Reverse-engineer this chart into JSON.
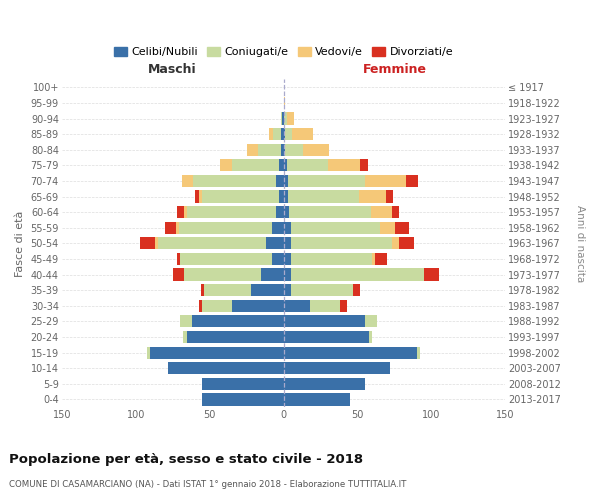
{
  "age_groups": [
    "100+",
    "95-99",
    "90-94",
    "85-89",
    "80-84",
    "75-79",
    "70-74",
    "65-69",
    "60-64",
    "55-59",
    "50-54",
    "45-49",
    "40-44",
    "35-39",
    "30-34",
    "25-29",
    "20-24",
    "15-19",
    "10-14",
    "5-9",
    "0-4"
  ],
  "birth_years": [
    "≤ 1917",
    "1918-1922",
    "1923-1927",
    "1928-1932",
    "1933-1937",
    "1938-1942",
    "1943-1947",
    "1948-1952",
    "1953-1957",
    "1958-1962",
    "1963-1967",
    "1968-1972",
    "1973-1977",
    "1978-1982",
    "1983-1987",
    "1988-1992",
    "1993-1997",
    "1998-2002",
    "2003-2007",
    "2008-2012",
    "2013-2017"
  ],
  "maschi": {
    "celibi": [
      0,
      0,
      1,
      2,
      2,
      3,
      5,
      3,
      5,
      8,
      12,
      8,
      15,
      22,
      35,
      62,
      65,
      90,
      78,
      55,
      55
    ],
    "coniugati": [
      0,
      0,
      1,
      5,
      15,
      32,
      56,
      52,
      60,
      63,
      73,
      62,
      52,
      32,
      20,
      8,
      3,
      2,
      0,
      0,
      0
    ],
    "vedovi": [
      0,
      0,
      0,
      3,
      8,
      8,
      8,
      2,
      2,
      2,
      2,
      0,
      0,
      0,
      0,
      0,
      0,
      0,
      0,
      0,
      0
    ],
    "divorziati": [
      0,
      0,
      0,
      0,
      0,
      0,
      0,
      3,
      5,
      7,
      10,
      2,
      8,
      2,
      2,
      0,
      0,
      0,
      0,
      0,
      0
    ]
  },
  "femmine": {
    "nubili": [
      0,
      0,
      0,
      1,
      1,
      2,
      3,
      3,
      4,
      5,
      5,
      5,
      5,
      5,
      18,
      55,
      58,
      90,
      72,
      55,
      45
    ],
    "coniugate": [
      0,
      0,
      2,
      5,
      12,
      28,
      52,
      48,
      55,
      60,
      68,
      55,
      90,
      42,
      20,
      8,
      2,
      2,
      0,
      0,
      0
    ],
    "vedove": [
      0,
      1,
      5,
      14,
      18,
      22,
      28,
      18,
      14,
      10,
      5,
      2,
      0,
      0,
      0,
      0,
      0,
      0,
      0,
      0,
      0
    ],
    "divorziate": [
      0,
      0,
      0,
      0,
      0,
      5,
      8,
      5,
      5,
      10,
      10,
      8,
      10,
      5,
      5,
      0,
      0,
      0,
      0,
      0,
      0
    ]
  },
  "colors": {
    "celibi": "#3a70a8",
    "coniugati": "#c8dba0",
    "vedovi": "#f5c878",
    "divorziati": "#d93020"
  },
  "title": "Popolazione per età, sesso e stato civile - 2018",
  "subtitle": "COMUNE DI CASAMARCIANO (NA) - Dati ISTAT 1° gennaio 2018 - Elaborazione TUTTITALIA.IT",
  "label_maschi": "Maschi",
  "label_femmine": "Femmine",
  "ylabel_left": "Fasce di età",
  "ylabel_right": "Anni di nascita",
  "legend_labels": [
    "Celibi/Nubili",
    "Coniugati/e",
    "Vedovi/e",
    "Divorziati/e"
  ],
  "xlim": 150,
  "background_color": "#ffffff"
}
